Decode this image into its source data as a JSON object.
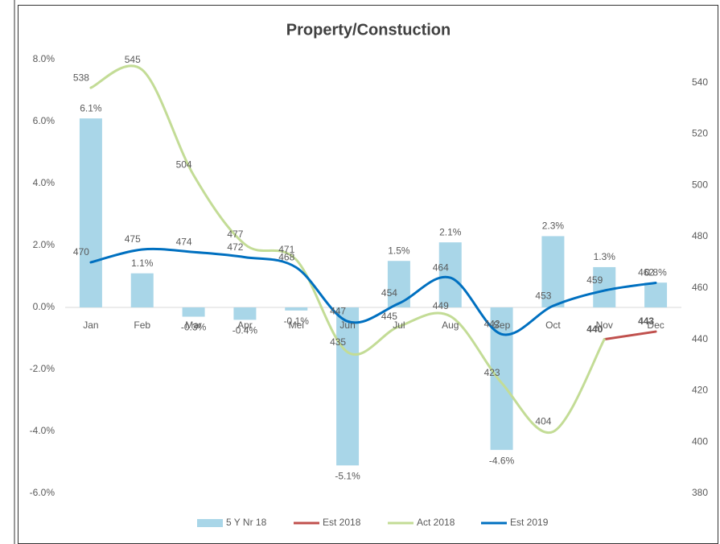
{
  "chart_data": {
    "type": "combo",
    "title": "Property/Constuction",
    "categories": [
      "Jan",
      "Feb",
      "Mar",
      "Apr",
      "Mei",
      "Jun",
      "Jul",
      "Aug",
      "Sep",
      "Oct",
      "Nov",
      "Dec"
    ],
    "ylim": [
      -6,
      8
    ],
    "yticks": [
      {
        "value": -6,
        "label": "-6.0%"
      },
      {
        "value": -4,
        "label": "-4.0%"
      },
      {
        "value": -2,
        "label": "-2.0%"
      },
      {
        "value": 0,
        "label": "0.0%"
      },
      {
        "value": 2,
        "label": "2.0%"
      },
      {
        "value": 4,
        "label": "4.0%"
      },
      {
        "value": 6,
        "label": "6.0%"
      },
      {
        "value": 8,
        "label": "8.0%"
      }
    ],
    "y2lim": [
      380,
      549
    ],
    "y2ticks": [
      380,
      400,
      420,
      440,
      460,
      480,
      500,
      520,
      540
    ],
    "series": [
      {
        "name": "5 Y Nr 18",
        "type": "bar",
        "axis": "y",
        "color": "#a9d6e8",
        "values": [
          6.1,
          1.1,
          -0.3,
          -0.4,
          -0.1,
          -5.1,
          1.5,
          2.1,
          -4.6,
          2.3,
          1.3,
          0.8
        ],
        "value_labels": [
          "6.1%",
          "1.1%",
          "-0.3%",
          "-0.4%",
          "-0.1%",
          "-5.1%",
          "1.5%",
          "2.1%",
          "-4.6%",
          "2.3%",
          "1.3%",
          "0.8%"
        ]
      },
      {
        "name": "Est 2018",
        "type": "line",
        "axis": "y2",
        "color": "#c0504d",
        "smooth": false,
        "values": [
          null,
          null,
          null,
          null,
          null,
          null,
          null,
          null,
          null,
          null,
          440,
          443
        ]
      },
      {
        "name": "Act 2018",
        "type": "line",
        "axis": "y2",
        "color": "#c3dc96",
        "smooth": true,
        "values": [
          538,
          545,
          504,
          477,
          471,
          435,
          445,
          449,
          423,
          404,
          440,
          null
        ]
      },
      {
        "name": "Est 2019",
        "type": "line",
        "axis": "y2",
        "color": "#0070c0",
        "smooth": true,
        "values": [
          470,
          475,
          474,
          472,
          468,
          447,
          454,
          464,
          442,
          453,
          459,
          462
        ]
      }
    ]
  }
}
